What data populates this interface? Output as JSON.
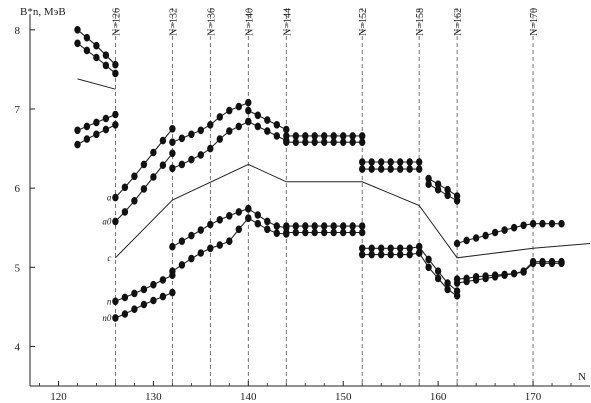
{
  "chart_data": {
    "type": "scatter",
    "title": "",
    "xlabel": "N",
    "ylabel": "B*n, MэB",
    "xlim": [
      117,
      176
    ],
    "ylim": [
      3.5,
      8.2
    ],
    "x_ticks": [
      120,
      130,
      140,
      150,
      160,
      170
    ],
    "y_ticks": [
      4,
      5,
      6,
      7,
      8
    ],
    "grid": false,
    "legend": "none",
    "shell_lines": [
      {
        "x": 126,
        "label": "N=126"
      },
      {
        "x": 132,
        "label": "N=132"
      },
      {
        "x": 136,
        "label": "N=136"
      },
      {
        "x": 140,
        "label": "N=140"
      },
      {
        "x": 144,
        "label": "N=144"
      },
      {
        "x": 152,
        "label": "N=152"
      },
      {
        "x": 158,
        "label": "N=158"
      },
      {
        "x": 162,
        "label": "N=162"
      },
      {
        "x": 170,
        "label": "N=170"
      }
    ],
    "series": [
      {
        "label": "a",
        "segments": [
          {
            "x": [
              122,
              123,
              124,
              125,
              126
            ],
            "y": [
              8.0,
              7.9,
              7.8,
              7.68,
              7.56
            ]
          },
          {
            "x": [
              126,
              127,
              128,
              129,
              130,
              131,
              132
            ],
            "y": [
              5.88,
              6.01,
              6.15,
              6.3,
              6.45,
              6.6,
              6.75
            ]
          },
          {
            "x": [
              132,
              133,
              134,
              135,
              136,
              137,
              138,
              139,
              140
            ],
            "y": [
              6.58,
              6.63,
              6.68,
              6.73,
              6.8,
              6.9,
              6.98,
              7.03,
              7.08
            ]
          },
          {
            "x": [
              140,
              141,
              142,
              143,
              144
            ],
            "y": [
              6.98,
              6.92,
              6.86,
              6.8,
              6.74
            ]
          },
          {
            "x": [
              144,
              145,
              146,
              147,
              148,
              149,
              150,
              151,
              152
            ],
            "y": [
              6.66,
              6.66,
              6.66,
              6.66,
              6.66,
              6.66,
              6.66,
              6.66,
              6.66
            ]
          },
          {
            "x": [
              152,
              153,
              154,
              155,
              156,
              157,
              158
            ],
            "y": [
              6.33,
              6.33,
              6.33,
              6.33,
              6.33,
              6.33,
              6.33
            ]
          },
          {
            "x": [
              159,
              160,
              161,
              162
            ],
            "y": [
              6.12,
              6.05,
              5.98,
              5.9
            ]
          },
          {
            "x": [
              162,
              163,
              164,
              165,
              166,
              167,
              168,
              169,
              170,
              171,
              172,
              173
            ],
            "y": [
              5.3,
              5.34,
              5.37,
              5.4,
              5.44,
              5.47,
              5.5,
              5.53,
              5.55,
              5.55,
              5.55,
              5.55
            ]
          }
        ]
      },
      {
        "label": "a0",
        "segments": [
          {
            "x": [
              122,
              123,
              124,
              125,
              126
            ],
            "y": [
              7.83,
              7.74,
              7.65,
              7.55,
              7.45
            ]
          },
          {
            "x": [
              126,
              127,
              128,
              129,
              130,
              131,
              132
            ],
            "y": [
              5.58,
              5.7,
              5.84,
              5.99,
              6.14,
              6.29,
              6.44
            ]
          },
          {
            "x": [
              132,
              133,
              134,
              135,
              136,
              137,
              138,
              139,
              140
            ],
            "y": [
              6.25,
              6.3,
              6.36,
              6.42,
              6.5,
              6.62,
              6.72,
              6.78,
              6.84
            ]
          },
          {
            "x": [
              140,
              141,
              142,
              143,
              144
            ],
            "y": [
              6.84,
              6.78,
              6.72,
              6.66,
              6.6
            ]
          },
          {
            "x": [
              144,
              145,
              146,
              147,
              148,
              149,
              150,
              151,
              152
            ],
            "y": [
              6.58,
              6.58,
              6.58,
              6.58,
              6.58,
              6.58,
              6.58,
              6.58,
              6.58
            ]
          },
          {
            "x": [
              152,
              153,
              154,
              155,
              156,
              157,
              158
            ],
            "y": [
              6.24,
              6.24,
              6.24,
              6.24,
              6.24,
              6.24,
              6.24
            ]
          },
          {
            "x": [
              159,
              160,
              161,
              162
            ],
            "y": [
              6.05,
              5.98,
              5.91,
              5.84
            ]
          }
        ]
      },
      {
        "label": "c",
        "segments": [
          {
            "x": [
              122,
              126
            ],
            "y": [
              7.38,
              7.25
            ]
          },
          {
            "x": [
              126,
              132,
              140,
              144,
              152,
              158,
              162,
              170,
              176
            ],
            "y": [
              5.12,
              5.85,
              6.3,
              6.08,
              6.08,
              5.78,
              5.12,
              5.24,
              5.3
            ]
          }
        ]
      },
      {
        "label": "n",
        "segments": [
          {
            "x": [
              122,
              123,
              124,
              125,
              126
            ],
            "y": [
              6.73,
              6.78,
              6.83,
              6.88,
              6.93
            ]
          },
          {
            "x": [
              126,
              127,
              128,
              129,
              130,
              131,
              132
            ],
            "y": [
              4.57,
              4.62,
              4.67,
              4.72,
              4.78,
              4.84,
              4.9
            ]
          },
          {
            "x": [
              132,
              133,
              134,
              135,
              136,
              137,
              138,
              139,
              140
            ],
            "y": [
              5.26,
              5.33,
              5.4,
              5.47,
              5.54,
              5.6,
              5.65,
              5.7,
              5.74
            ]
          },
          {
            "x": [
              140,
              141,
              142,
              143,
              144
            ],
            "y": [
              5.74,
              5.66,
              5.58,
              5.52,
              5.5
            ]
          },
          {
            "x": [
              144,
              145,
              146,
              147,
              148,
              149,
              150,
              151,
              152
            ],
            "y": [
              5.52,
              5.52,
              5.52,
              5.52,
              5.52,
              5.52,
              5.52,
              5.52,
              5.52
            ]
          },
          {
            "x": [
              152,
              153,
              154,
              155,
              156,
              157,
              158
            ],
            "y": [
              5.24,
              5.24,
              5.24,
              5.24,
              5.24,
              5.24,
              5.26
            ]
          },
          {
            "x": [
              158,
              159,
              160,
              161,
              162
            ],
            "y": [
              5.26,
              5.1,
              4.95,
              4.8,
              4.7
            ]
          },
          {
            "x": [
              162,
              163,
              164,
              165,
              166,
              167,
              168,
              169,
              170,
              171,
              172,
              173
            ],
            "y": [
              4.85,
              4.86,
              4.88,
              4.89,
              4.9,
              4.91,
              4.92,
              4.95,
              5.07,
              5.07,
              5.07,
              5.07
            ]
          }
        ]
      },
      {
        "label": "n0",
        "segments": [
          {
            "x": [
              122,
              123,
              124,
              125,
              126
            ],
            "y": [
              6.55,
              6.62,
              6.68,
              6.74,
              6.8
            ]
          },
          {
            "x": [
              126,
              127,
              128,
              129,
              130,
              131,
              132
            ],
            "y": [
              4.36,
              4.41,
              4.47,
              4.53,
              4.58,
              4.63,
              4.68
            ]
          },
          {
            "x": [
              132,
              133,
              134,
              135,
              136,
              137,
              138,
              139,
              140
            ],
            "y": [
              4.95,
              5.03,
              5.11,
              5.18,
              5.24,
              5.28,
              5.33,
              5.48,
              5.62
            ]
          },
          {
            "x": [
              140,
              141,
              142,
              143,
              144
            ],
            "y": [
              5.62,
              5.55,
              5.48,
              5.43,
              5.42
            ]
          },
          {
            "x": [
              144,
              145,
              146,
              147,
              148,
              149,
              150,
              151,
              152
            ],
            "y": [
              5.44,
              5.44,
              5.44,
              5.44,
              5.44,
              5.44,
              5.44,
              5.44,
              5.44
            ]
          },
          {
            "x": [
              152,
              153,
              154,
              155,
              156,
              157,
              158
            ],
            "y": [
              5.16,
              5.16,
              5.16,
              5.16,
              5.16,
              5.16,
              5.18
            ]
          },
          {
            "x": [
              158,
              159,
              160,
              161,
              162
            ],
            "y": [
              5.18,
              5.0,
              4.86,
              4.72,
              4.64
            ]
          },
          {
            "x": [
              162,
              163,
              164,
              165,
              166,
              167,
              168,
              169,
              170,
              171,
              172,
              173
            ],
            "y": [
              4.8,
              4.82,
              4.84,
              4.86,
              4.88,
              4.9,
              4.92,
              4.94,
              5.05,
              5.05,
              5.05,
              5.05
            ]
          }
        ]
      }
    ],
    "curve_labels": [
      {
        "text": "a",
        "series": "a"
      },
      {
        "text": "a0",
        "series": "a0"
      },
      {
        "text": "c",
        "series": "c"
      },
      {
        "text": "n",
        "series": "n"
      },
      {
        "text": "n0",
        "series": "n0"
      }
    ]
  }
}
